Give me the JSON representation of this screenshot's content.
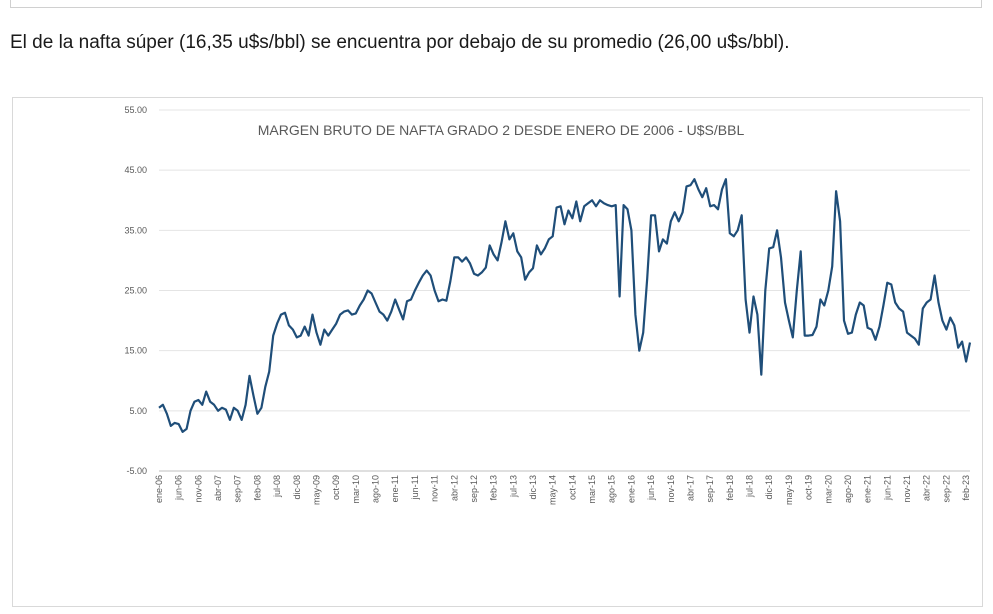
{
  "intro_text": "El de la nafta súper (16,35 u$s/bbl) se encuentra por debajo de su promedio (26,00 u$s/bbl).",
  "chart_data": {
    "type": "line",
    "title": "MARGEN BRUTO DE NAFTA GRADO 2 DESDE ENERO DE 2006 - U$S/BBL",
    "xlabel": "",
    "ylabel": "",
    "ylim": [
      -5,
      55
    ],
    "yticks": [
      "-5.00",
      "5.00",
      "15.00",
      "25.00",
      "35.00",
      "45.00",
      "55.00"
    ],
    "grid": true,
    "legend": "none",
    "line_color": "#1f4e79",
    "x_tick_labels": [
      "ene-06",
      "jun-06",
      "nov-06",
      "abr-07",
      "sep-07",
      "feb-08",
      "jul-08",
      "dic-08",
      "may-09",
      "oct-09",
      "mar-10",
      "ago-10",
      "ene-11",
      "jun-11",
      "nov-11",
      "abr-12",
      "sep-12",
      "feb-13",
      "jul-13",
      "dic-13",
      "may-14",
      "oct-14",
      "mar-15",
      "ago-15",
      "ene-16",
      "jun-16",
      "nov-16",
      "abr-17",
      "sep-17",
      "feb-18",
      "jul-18",
      "dic-18",
      "may-19",
      "oct-19",
      "mar-20",
      "ago-20",
      "ene-21",
      "jun-21",
      "nov-21",
      "abr-22",
      "sep-22",
      "feb-23"
    ],
    "x_start": "ene-06",
    "values": [
      5.5,
      6,
      4.5,
      2.5,
      3,
      2.8,
      1.5,
      2,
      5,
      6.5,
      6.8,
      6,
      8.2,
      6.5,
      6,
      5,
      5.5,
      5.2,
      3.5,
      5.5,
      5,
      3.5,
      6,
      10.8,
      7.5,
      4.5,
      5.5,
      9,
      11.5,
      17.5,
      19.5,
      21,
      21.3,
      19.2,
      18.5,
      17.2,
      17.5,
      19,
      17.5,
      21,
      18,
      16,
      18.5,
      17.5,
      18.5,
      19.5,
      21,
      21.5,
      21.7,
      21,
      21.2,
      22.5,
      23.5,
      25,
      24.5,
      23,
      21.5,
      21,
      20,
      21.5,
      23.5,
      21.8,
      20.2,
      23.2,
      23.5,
      25,
      26.3,
      27.5,
      28.3,
      27.5,
      25,
      23.2,
      23.5,
      23.3,
      26.5,
      30.5,
      30.5,
      29.8,
      30.5,
      29.5,
      27.8,
      27.5,
      28,
      28.8,
      32.5,
      31,
      30,
      33,
      36.5,
      33.5,
      34.5,
      31.5,
      30.5,
      26.8,
      28,
      28.7,
      32.5,
      31,
      32,
      33.5,
      34,
      38.8,
      39,
      36,
      38.3,
      37,
      39.8,
      36.5,
      39,
      39.5,
      40,
      39,
      40,
      39.5,
      39.2,
      39,
      39.2,
      24,
      39.2,
      38.5,
      35,
      21,
      15,
      18,
      27,
      37.5,
      37.5,
      31.5,
      33.5,
      32.8,
      36.5,
      38,
      36.5,
      38,
      42.3,
      42.5,
      43.5,
      41.8,
      40.5,
      42,
      39,
      39.2,
      38.5,
      41.8,
      43.5,
      34.5,
      34,
      35,
      37.5,
      23.5,
      18,
      24,
      21,
      11,
      25,
      32,
      32.2,
      35,
      30.5,
      23,
      20,
      17.2,
      25,
      31.5,
      17.5,
      17.5,
      17.6,
      19,
      23.5,
      22.5,
      25,
      29,
      41.5,
      36.5,
      20,
      17.8,
      18,
      21,
      23,
      22.5,
      18.8,
      18.5,
      16.8,
      19,
      22.5,
      26.3,
      26,
      23,
      22,
      21.5,
      18,
      17.5,
      17,
      16,
      22,
      23,
      23.5,
      27.5,
      23,
      20,
      18.5,
      20.5,
      19.2,
      15.5,
      16.5,
      13.2,
      16.35
    ]
  }
}
